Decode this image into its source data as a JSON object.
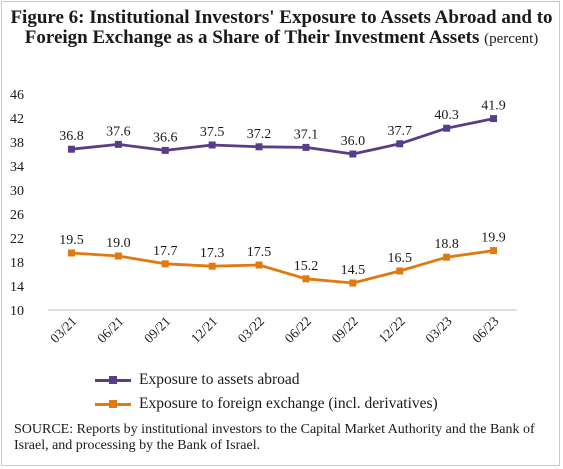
{
  "title": {
    "main": "Figure 6: Institutional Investors' Exposure to Assets Abroad and to Foreign Exchange as a Share of Their Investment Assets",
    "unit": "(percent)"
  },
  "source": "SOURCE: Reports by institutional investors to the Capital Market Authority and the Bank of Israel, and processing by the Bank of Israel.",
  "chart_data": {
    "type": "line",
    "title": "Figure 6: Institutional Investors' Exposure to Assets Abroad and to Foreign Exchange as a Share of Their Investment Assets",
    "ylabel": "(percent)",
    "xlabel": "",
    "categories": [
      "03/21",
      "06/21",
      "09/21",
      "12/21",
      "03/22",
      "06/22",
      "09/22",
      "12/22",
      "03/23",
      "06/23"
    ],
    "yticks": [
      10,
      14,
      18,
      22,
      26,
      30,
      34,
      38,
      42,
      46
    ],
    "ylim": [
      10,
      46
    ],
    "grid": false,
    "legend_position": "bottom",
    "series": [
      {
        "name": "Exposure to assets abroad",
        "color": "#5b3c88",
        "marker": "square",
        "values": [
          36.8,
          37.6,
          36.6,
          37.5,
          37.2,
          37.1,
          36.0,
          37.7,
          40.3,
          41.9
        ],
        "labels": [
          "36.8",
          "37.6",
          "36.6",
          "37.5",
          "37.2",
          "37.1",
          "36.0",
          "37.7",
          "40.3",
          "41.9"
        ]
      },
      {
        "name": "Exposure to foreign exchange (incl. derivatives)",
        "color": "#e07a10",
        "marker": "square",
        "values": [
          19.5,
          19.0,
          17.7,
          17.3,
          17.5,
          15.2,
          14.5,
          16.5,
          18.8,
          19.9
        ],
        "labels": [
          "19.5",
          "19.0",
          "17.7",
          "17.3",
          "17.5",
          "15.2",
          "14.5",
          "16.5",
          "18.8",
          "19.9"
        ]
      }
    ]
  }
}
